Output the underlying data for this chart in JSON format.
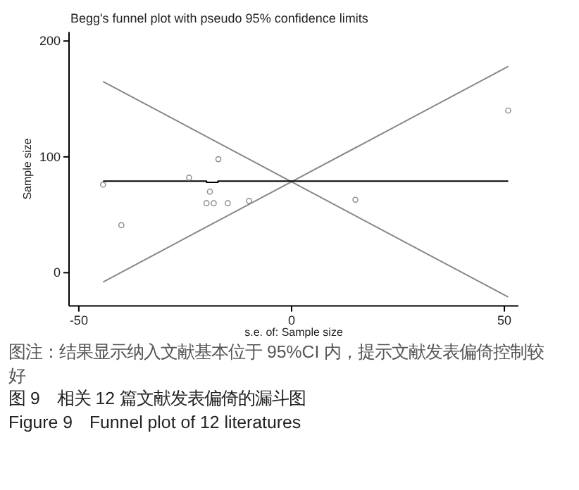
{
  "chart_data": {
    "type": "scatter",
    "title": "Begg's funnel plot with pseudo 95% confidence limits",
    "xlabel": "s.e. of: Sample size",
    "ylabel": "Sample size",
    "xlim": [
      -52.3,
      53.3
    ],
    "ylim": [
      -28.7,
      207.8
    ],
    "xticks": [
      -50,
      0,
      50
    ],
    "yticks": [
      0,
      100,
      200
    ],
    "series": [
      {
        "type": "line",
        "color": "#888888",
        "marker": "none",
        "x": [
          -44.3,
          50.9
        ],
        "values": [
          165,
          -21
        ]
      },
      {
        "type": "line",
        "color": "#888888",
        "marker": "none",
        "x": [
          -44.3,
          50.9
        ],
        "values": [
          -8,
          178
        ]
      },
      {
        "type": "line",
        "color": "#000000",
        "marker": "none",
        "x": [
          -44.3,
          -20,
          -20,
          -17.3,
          -17.3,
          50.9
        ],
        "values": [
          79,
          79,
          78,
          78,
          79,
          79
        ]
      },
      {
        "color": "#888888",
        "marker": "circle",
        "x": [
          -44.3,
          -40,
          -24.1,
          -17.2,
          -19.2,
          -20,
          -18.3,
          -15,
          -10,
          15,
          50.9
        ],
        "values": [
          76,
          41,
          82,
          98,
          70,
          60,
          60,
          60,
          62,
          63,
          140
        ]
      }
    ],
    "annotations": [
      "图注：结果显示纳入文献基本位于 95%CI 内，提示文献发表偏倚控制较好",
      "图 9　相关 12 篇文献发表偏倚的漏斗图",
      "Figure 9　Funnel plot of 12 literatures"
    ]
  }
}
